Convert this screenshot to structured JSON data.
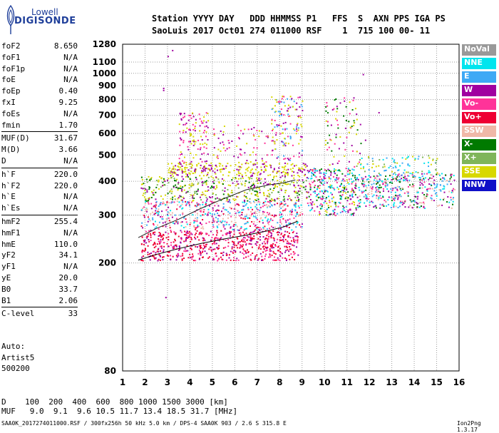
{
  "logo": {
    "line1": "Lowell",
    "line2": "DIGISONDE"
  },
  "header": {
    "labels": "Station YYYY DAY   DDD HHMMSS P1   FFS  S  AXN PPS IGA PS",
    "values": "SaoLuis 2017 Oct01 274 011000 RSF    1  715 100 00- 11"
  },
  "params": [
    {
      "name": "foF2",
      "value": "8.650"
    },
    {
      "name": "foF1",
      "value": "N/A"
    },
    {
      "name": "foF1p",
      "value": "N/A"
    },
    {
      "name": "foE",
      "value": "N/A"
    },
    {
      "name": "foEp",
      "value": "0.40"
    },
    {
      "name": "fxI",
      "value": "9.25"
    },
    {
      "name": "foEs",
      "value": "N/A"
    },
    {
      "name": "fmin",
      "value": "1.70"
    },
    {
      "name": "MUF(D)",
      "value": "31.67"
    },
    {
      "name": "M(D)",
      "value": "3.66"
    },
    {
      "name": "D",
      "value": "N/A"
    },
    {
      "name": "h`F",
      "value": "220.0"
    },
    {
      "name": "h`F2",
      "value": "220.0"
    },
    {
      "name": "h`E",
      "value": "N/A"
    },
    {
      "name": "h`Es",
      "value": "N/A"
    },
    {
      "name": "hmF2",
      "value": "255.4"
    },
    {
      "name": "hmF1",
      "value": "N/A"
    },
    {
      "name": "hmE",
      "value": "110.0"
    },
    {
      "name": "yF2",
      "value": "34.1"
    },
    {
      "name": "yF1",
      "value": "N/A"
    },
    {
      "name": "yE",
      "value": "20.0"
    },
    {
      "name": "B0",
      "value": "33.7"
    },
    {
      "name": "B1",
      "value": "2.06"
    },
    {
      "name": "C-level",
      "value": "33"
    }
  ],
  "auto": {
    "line1": "Auto:",
    "line2": "Artist5",
    "line3": "500200"
  },
  "legend": [
    {
      "label": "NoVal",
      "color": "#999999"
    },
    {
      "label": "NNE",
      "color": "#00e5ee"
    },
    {
      "label": "E",
      "color": "#3ea9f5"
    },
    {
      "label": "W",
      "color": "#a000a0"
    },
    {
      "label": "Vo-",
      "color": "#ff3399"
    },
    {
      "label": "Vo+",
      "color": "#ee0033"
    },
    {
      "label": "SSW",
      "color": "#f0b8a8"
    },
    {
      "label": "X-",
      "color": "#007a00"
    },
    {
      "label": "X+",
      "color": "#7fb55a"
    },
    {
      "label": "SSE",
      "color": "#d8d800"
    },
    {
      "label": "NNW",
      "color": "#1010c8"
    }
  ],
  "dmuf": {
    "d_line": "D    100  200  400  600  800 1000 1500 3000 [km]",
    "muf_line": "MUF   9.0  9.1  9.6 10.5 11.7 13.4 18.5 31.7 [MHz]"
  },
  "footer": {
    "info": "SAA0K_2017274011000.RSF / 300fx256h 50 kHz 5.0 km / DPS-4 SAA0K 903 / 2.6 S 315.8 E",
    "version": "Ion2Png 1.3.17"
  },
  "chart_data": {
    "type": "scatter",
    "x_ticks": [
      1,
      2,
      3,
      4,
      5,
      6,
      7,
      8,
      9,
      10,
      11,
      12,
      13,
      14,
      15,
      16
    ],
    "y_ticks": [
      80,
      200,
      300,
      400,
      500,
      600,
      700,
      800,
      900,
      1000,
      1100,
      1280
    ],
    "xlim": [
      1,
      16
    ],
    "ylim": [
      80,
      1280
    ],
    "ylog": true,
    "grid": true,
    "trace": [
      [
        1.7,
        205
      ],
      [
        2.5,
        215
      ],
      [
        3.5,
        226
      ],
      [
        4.5,
        236
      ],
      [
        5.5,
        245
      ],
      [
        6.5,
        253
      ],
      [
        7.5,
        263
      ],
      [
        8.2,
        272
      ],
      [
        8.8,
        285
      ]
    ],
    "trace2": [
      [
        1.7,
        248
      ],
      [
        2.5,
        268
      ],
      [
        3.5,
        290
      ],
      [
        4.5,
        318
      ],
      [
        5.5,
        345
      ],
      [
        6.5,
        372
      ],
      [
        7.5,
        388
      ],
      [
        8.2,
        395
      ],
      [
        8.7,
        405
      ]
    ],
    "clusters": [
      {
        "x": [
          1.8,
          8.8
        ],
        "y": [
          205,
          265
        ],
        "colors": [
          "#ee0033",
          "#ee0033",
          "#ff3399",
          "#a000a0"
        ],
        "n": 650
      },
      {
        "x": [
          1.8,
          9.0
        ],
        "y": [
          265,
          340
        ],
        "colors": [
          "#ff3399",
          "#a000a0",
          "#ee0033",
          "#3ea9f5",
          "#00e5ee",
          "#f0b8a8"
        ],
        "n": 520
      },
      {
        "x": [
          1.8,
          9.2
        ],
        "y": [
          340,
          420
        ],
        "colors": [
          "#d8d800",
          "#d8d800",
          "#007a00",
          "#7fb55a",
          "#a000a0"
        ],
        "n": 420
      },
      {
        "x": [
          3.0,
          9.2
        ],
        "y": [
          420,
          470
        ],
        "colors": [
          "#d8d800",
          "#d8d800",
          "#a000a0"
        ],
        "n": 260
      },
      {
        "x": [
          9.2,
          11.4
        ],
        "y": [
          300,
          450
        ],
        "colors": [
          "#ff3399",
          "#a000a0",
          "#d8d800",
          "#3ea9f5",
          "#00e5ee",
          "#007a00"
        ],
        "n": 320
      },
      {
        "x": [
          11.4,
          15.8
        ],
        "y": [
          320,
          430
        ],
        "colors": [
          "#ff3399",
          "#f0b8a8",
          "#a000a0",
          "#00e5ee",
          "#3ea9f5",
          "#007a00"
        ],
        "n": 420
      },
      {
        "x": [
          11.4,
          15.0
        ],
        "y": [
          430,
          500
        ],
        "colors": [
          "#3ea9f5",
          "#00e5ee",
          "#7fb55a",
          "#d8d800"
        ],
        "n": 90
      },
      {
        "x": [
          3.5,
          4.8
        ],
        "y": [
          470,
          720
        ],
        "colors": [
          "#a000a0",
          "#d8d800",
          "#ff3399"
        ],
        "n": 110
      },
      {
        "x": [
          7.6,
          9.0
        ],
        "y": [
          480,
          830
        ],
        "colors": [
          "#d8d800",
          "#a000a0",
          "#ff3399",
          "#3ea9f5"
        ],
        "n": 140
      },
      {
        "x": [
          10.0,
          11.6
        ],
        "y": [
          450,
          820
        ],
        "colors": [
          "#d8d800",
          "#a000a0",
          "#ff3399",
          "#007a00"
        ],
        "n": 80
      },
      {
        "x": [
          5.0,
          7.5
        ],
        "y": [
          470,
          650
        ],
        "colors": [
          "#d8d800",
          "#a000a0",
          "#ff3399"
        ],
        "n": 70
      }
    ],
    "stray_points": [
      [
        2.8,
        870
      ],
      [
        2.8,
        885
      ],
      [
        3.0,
        1160
      ],
      [
        3.2,
        1220
      ],
      [
        11.7,
        995
      ],
      [
        12.4,
        720
      ],
      [
        11.8,
        570
      ],
      [
        2.9,
        150
      ]
    ]
  }
}
